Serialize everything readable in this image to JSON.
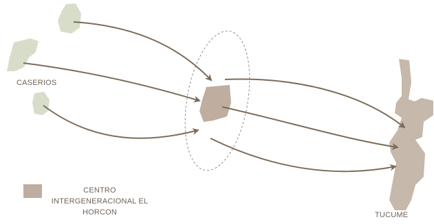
{
  "labels": {
    "caserios": "CASERIOS",
    "tucume": "TUCUME",
    "legend_line1": "CENTRO",
    "legend_line2": "INTERGENERACIONAL EL",
    "legend_line3": "HORCON"
  },
  "colors": {
    "caserio_fill": "#d7ddc9",
    "center_fill": "#bfae9f",
    "tucume_fill": "#c6b8aa",
    "arrow": "#7d6b58",
    "dashed_ellipse": "#8a8a8a",
    "text": "#6f6258"
  }
}
